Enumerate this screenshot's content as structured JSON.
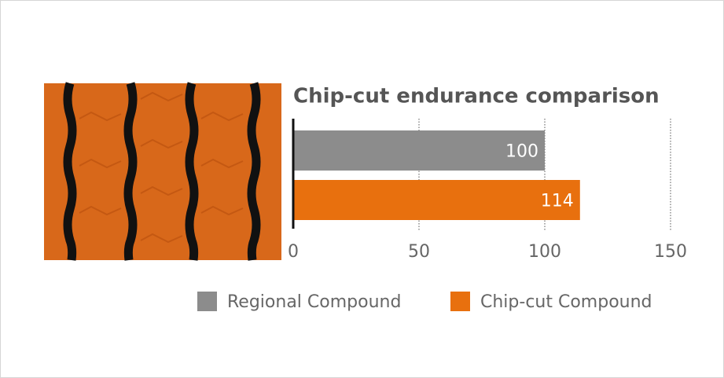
{
  "chart_data": {
    "type": "bar",
    "orientation": "horizontal",
    "title": "Chip-cut endurance comparison",
    "series": [
      {
        "name": "Regional Compound",
        "color": "#8c8c8c",
        "values": [
          100
        ]
      },
      {
        "name": "Chip-cut Compound",
        "color": "#e8700e",
        "values": [
          114
        ]
      }
    ],
    "xlim": [
      0,
      150
    ],
    "xticks": [
      0,
      50,
      100,
      150
    ],
    "grid": true
  }
}
